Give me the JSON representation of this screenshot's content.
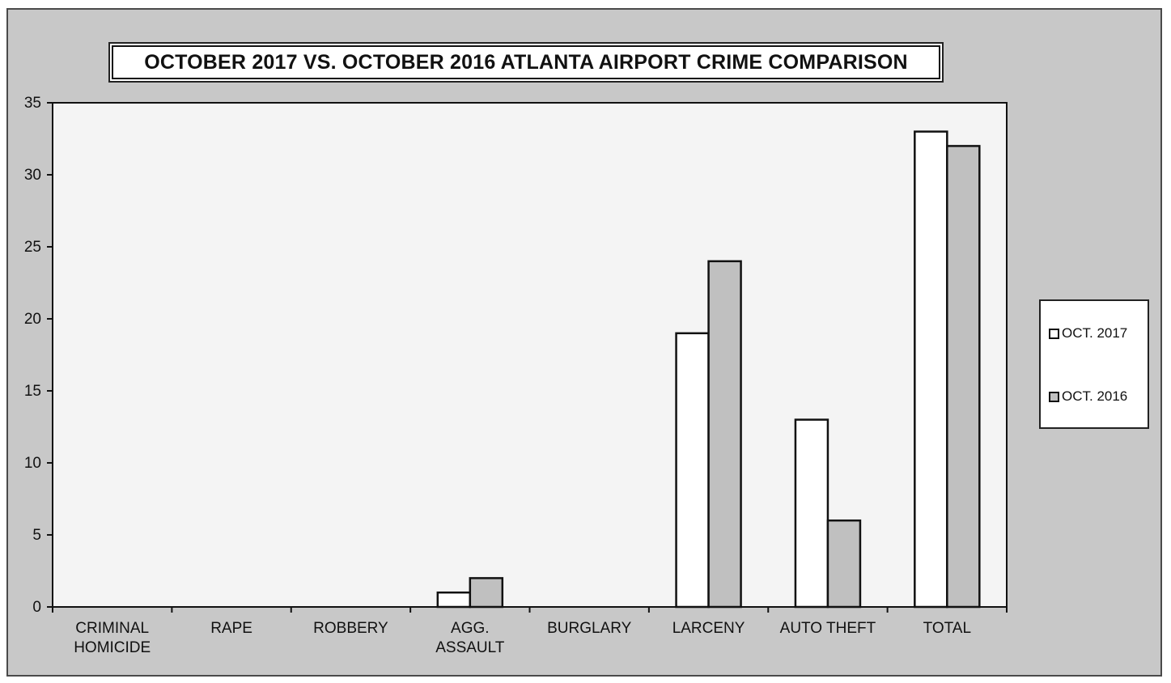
{
  "chart_data": {
    "type": "bar",
    "title": "OCTOBER 2017 VS. OCTOBER 2016  ATLANTA AIRPORT CRIME COMPARISON",
    "categories": [
      [
        "CRIMINAL",
        "HOMICIDE"
      ],
      [
        "RAPE"
      ],
      [
        "ROBBERY"
      ],
      [
        "AGG.",
        "ASSAULT"
      ],
      [
        "BURGLARY"
      ],
      [
        "LARCENY"
      ],
      [
        "AUTO THEFT"
      ],
      [
        "TOTAL"
      ]
    ],
    "series": [
      {
        "name": "OCT. 2017",
        "color": "#ffffff",
        "values": [
          0,
          0,
          0,
          1,
          0,
          19,
          13,
          33
        ]
      },
      {
        "name": "OCT. 2016",
        "color": "#c0c0c0",
        "values": [
          0,
          0,
          0,
          2,
          0,
          24,
          6,
          32
        ]
      }
    ],
    "ylim": [
      0,
      35
    ],
    "yticks": [
      "0",
      "5",
      "10",
      "15",
      "20",
      "25",
      "30",
      "35"
    ],
    "legend_position": "right",
    "grid": false,
    "colors": {
      "background": "#c8c8c8",
      "plot_area": "#f4f4f4",
      "axis": "#111111"
    }
  }
}
